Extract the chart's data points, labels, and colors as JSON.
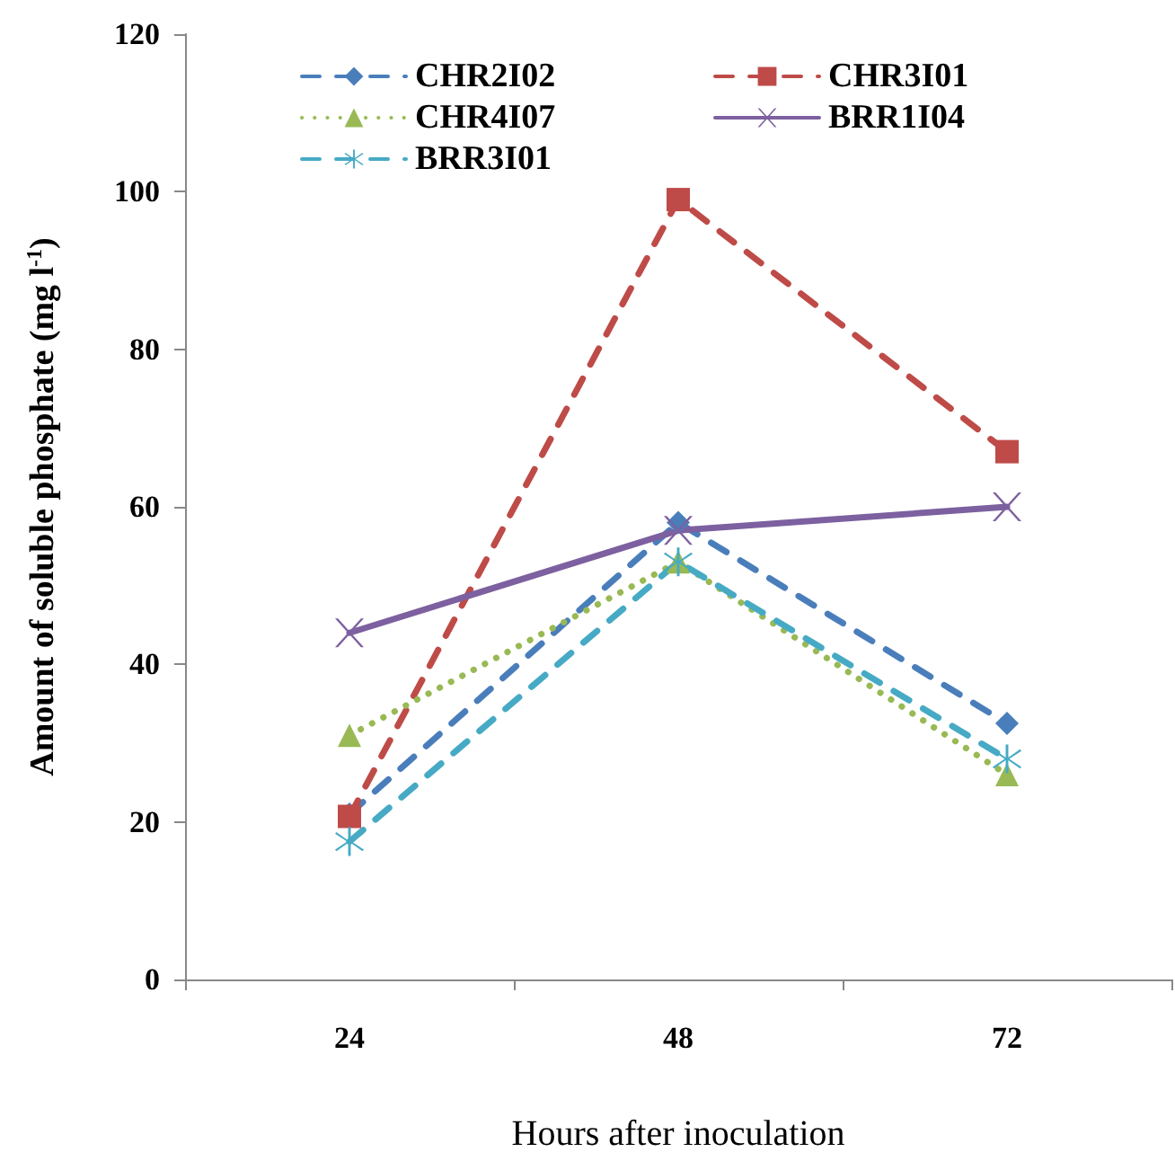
{
  "chart_data": {
    "type": "line",
    "categories": [
      "24",
      "48",
      "72"
    ],
    "xlabel": "Hours after inoculation",
    "ylabel": "Amount of soluble phosphate (mg l$^{-1}$)",
    "ylim": [
      0,
      120
    ],
    "yticks": [
      0,
      20,
      40,
      60,
      80,
      100,
      120
    ],
    "grid": false,
    "legend": "top",
    "series": [
      {
        "name": "CHR2I02",
        "color": "#4a7ebb",
        "marker": "diamond",
        "line_style": "dashed",
        "values": [
          21,
          58,
          32.5
        ]
      },
      {
        "name": "CHR3I01",
        "color": "#be4b48",
        "marker": "square",
        "line_style": "dashed",
        "values": [
          20.7,
          99,
          67
        ]
      },
      {
        "name": "CHR4I07",
        "color": "#98b954",
        "marker": "triangle",
        "line_style": "dotted",
        "values": [
          31,
          53,
          26
        ]
      },
      {
        "name": "BRR1I04",
        "color": "#7d60a0",
        "marker": "cross",
        "line_style": "solid",
        "values": [
          44,
          57,
          60
        ]
      },
      {
        "name": "BRR3I01",
        "color": "#46aac5",
        "marker": "star",
        "line_style": "dashed",
        "values": [
          17.5,
          53,
          28
        ]
      }
    ]
  }
}
